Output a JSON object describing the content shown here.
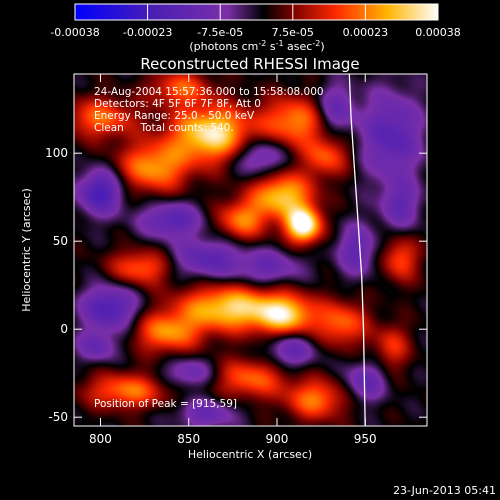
{
  "chart_data": {
    "type": "heatmap",
    "title": "Reconstructed RHESSI Image",
    "xlabel": "Heliocentric X (arcsec)",
    "ylabel": "Heliocentric Y (arcsec)",
    "xlim": [
      785,
      985
    ],
    "ylim": [
      -55,
      145
    ],
    "xticks": [
      800,
      850,
      900,
      950
    ],
    "yticks": [
      -50,
      0,
      50,
      100
    ],
    "colorbar": {
      "ticks": [
        "-0.00038",
        "-0.00023",
        "-7.5e-05",
        "7.5e-05",
        "0.00023",
        "0.00038"
      ],
      "range": [
        -0.00038,
        0.00038
      ],
      "units_main": "(photons cm",
      "units_exp1": "-2",
      "units_mid": " s",
      "units_exp2": "-1",
      "units_tail": " asec",
      "units_exp3": "-2",
      "units_close": ")"
    },
    "annotations": {
      "time_range": "24-Aug-2004 15:57:36.000 to 15:58:08.000",
      "detectors": "Detectors: 4F 5F 6F 7F 8F, Att 0",
      "energy_range": "Energy Range: 25.0 - 50.0 keV",
      "clean_counts": "Clean     Total counts: 540.",
      "peak_position": "Position of Peak = [915,59]"
    },
    "limb_curve": {
      "x": [
        941,
        942,
        944,
        946,
        948,
        949,
        950
      ],
      "y": [
        145,
        120,
        90,
        60,
        30,
        0,
        -55
      ]
    },
    "blobs": [
      {
        "x": 863,
        "y": 111,
        "sx": 16,
        "sy": 11,
        "a": 1.05
      },
      {
        "x": 830,
        "y": 92,
        "sx": 14,
        "sy": 10,
        "a": 0.75
      },
      {
        "x": 800,
        "y": 120,
        "sx": 14,
        "sy": 8,
        "a": 0.6
      },
      {
        "x": 845,
        "y": 137,
        "sx": 12,
        "sy": 7,
        "a": 0.55
      },
      {
        "x": 910,
        "y": 118,
        "sx": 13,
        "sy": 10,
        "a": 0.7
      },
      {
        "x": 903,
        "y": 76,
        "sx": 12,
        "sy": 9,
        "a": 0.9
      },
      {
        "x": 915,
        "y": 59,
        "sx": 7,
        "sy": 7,
        "a": 1.25
      },
      {
        "x": 880,
        "y": 62,
        "sx": 10,
        "sy": 8,
        "a": 0.65
      },
      {
        "x": 928,
        "y": 98,
        "sx": 9,
        "sy": 8,
        "a": 0.55
      },
      {
        "x": 823,
        "y": 35,
        "sx": 12,
        "sy": 7,
        "a": 0.6
      },
      {
        "x": 873,
        "y": 12,
        "sx": 20,
        "sy": 9,
        "a": 0.95
      },
      {
        "x": 905,
        "y": 8,
        "sx": 12,
        "sy": 8,
        "a": 0.85
      },
      {
        "x": 937,
        "y": 3,
        "sx": 10,
        "sy": 9,
        "a": 0.6
      },
      {
        "x": 838,
        "y": -2,
        "sx": 13,
        "sy": 8,
        "a": 0.7
      },
      {
        "x": 815,
        "y": -35,
        "sx": 16,
        "sy": 7,
        "a": 0.65
      },
      {
        "x": 885,
        "y": -28,
        "sx": 14,
        "sy": 8,
        "a": 0.6
      },
      {
        "x": 922,
        "y": -40,
        "sx": 12,
        "sy": 8,
        "a": 0.65
      },
      {
        "x": 970,
        "y": 40,
        "sx": 7,
        "sy": 9,
        "a": 0.55
      },
      {
        "x": 965,
        "y": -10,
        "sx": 7,
        "sy": 9,
        "a": 0.45
      },
      {
        "x": 800,
        "y": 78,
        "sx": 9,
        "sy": 9,
        "a": -0.75
      },
      {
        "x": 840,
        "y": 62,
        "sx": 12,
        "sy": 7,
        "a": -0.6
      },
      {
        "x": 890,
        "y": 98,
        "sx": 10,
        "sy": 8,
        "a": -0.55
      },
      {
        "x": 933,
        "y": 125,
        "sx": 8,
        "sy": 10,
        "a": -0.5
      },
      {
        "x": 860,
        "y": 40,
        "sx": 14,
        "sy": 8,
        "a": -0.55
      },
      {
        "x": 805,
        "y": 12,
        "sx": 11,
        "sy": 9,
        "a": -0.7
      },
      {
        "x": 895,
        "y": 35,
        "sx": 13,
        "sy": 7,
        "a": -0.45
      },
      {
        "x": 945,
        "y": 45,
        "sx": 8,
        "sy": 10,
        "a": -0.5
      },
      {
        "x": 965,
        "y": 110,
        "sx": 12,
        "sy": 18,
        "a": -0.6
      },
      {
        "x": 970,
        "y": 70,
        "sx": 8,
        "sy": 10,
        "a": -0.45
      },
      {
        "x": 850,
        "y": -25,
        "sx": 10,
        "sy": 6,
        "a": -0.45
      },
      {
        "x": 908,
        "y": -12,
        "sx": 10,
        "sy": 7,
        "a": -0.5
      },
      {
        "x": 950,
        "y": -30,
        "sx": 8,
        "sy": 8,
        "a": -0.5
      },
      {
        "x": 798,
        "y": -10,
        "sx": 8,
        "sy": 6,
        "a": -0.45
      },
      {
        "x": 860,
        "y": -48,
        "sx": 12,
        "sy": 6,
        "a": -0.45
      }
    ]
  },
  "footer": {
    "timestamp": "23-Jun-2013 05:41"
  }
}
